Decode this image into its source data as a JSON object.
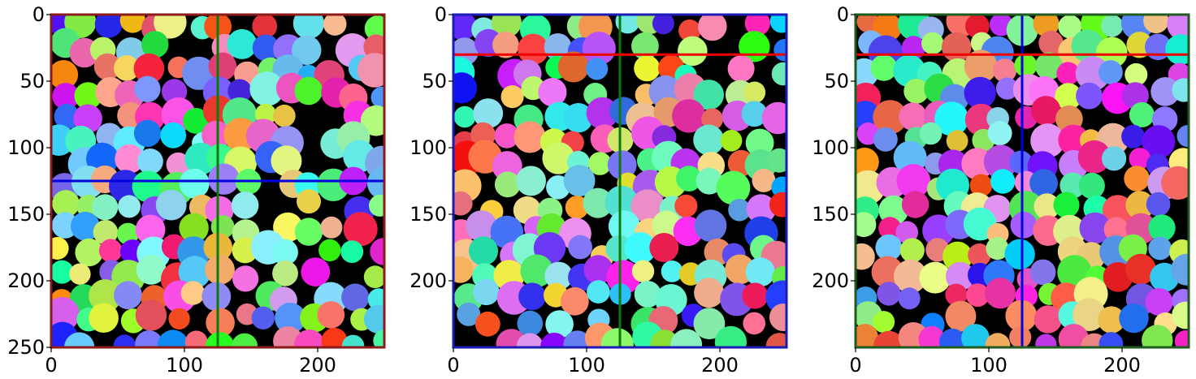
{
  "panels": [
    {
      "id": "panel-1",
      "frame_color": "#8b1a1a",
      "x_ticks": [
        0,
        100,
        200
      ],
      "y_ticks": [
        0,
        50,
        100,
        150,
        200,
        250
      ],
      "lines": [
        {
          "orientation": "vertical",
          "at": 125,
          "color": "#0a7a0a"
        },
        {
          "orientation": "horizontal",
          "at": 125,
          "color": "#0000dd"
        }
      ],
      "seed": 11
    },
    {
      "id": "panel-2",
      "frame_color": "#1b1bb5",
      "x_ticks": [
        0,
        100,
        200
      ],
      "y_ticks": [
        0,
        50,
        100,
        150,
        200
      ],
      "lines": [
        {
          "orientation": "vertical",
          "at": 125,
          "color": "#0a7a0a"
        },
        {
          "orientation": "horizontal",
          "at": 30,
          "color": "#ee0000"
        }
      ],
      "seed": 23
    },
    {
      "id": "panel-3",
      "frame_color": "#1f5a1f",
      "x_ticks": [
        0,
        100,
        200
      ],
      "y_ticks": [
        0,
        50,
        100,
        150,
        200
      ],
      "lines": [
        {
          "orientation": "vertical",
          "at": 125,
          "color": "#0000dd"
        },
        {
          "orientation": "horizontal",
          "at": 30,
          "color": "#ee0000"
        }
      ],
      "seed": 37
    }
  ]
}
